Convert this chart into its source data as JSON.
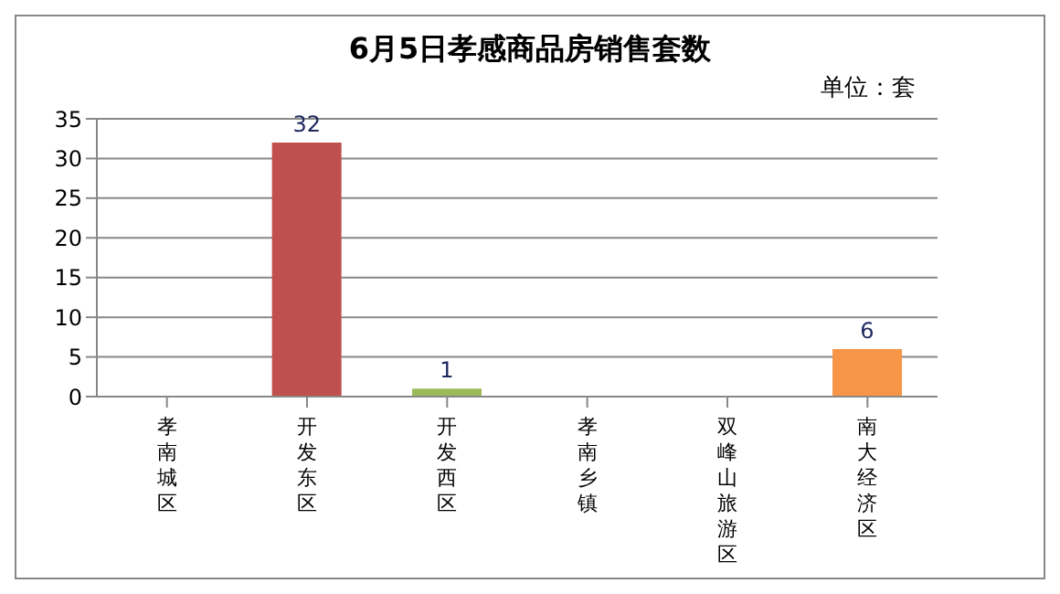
{
  "chart_data": {
    "type": "bar",
    "title": "6月5日孝感商品房销售套数",
    "annotations": [
      "单位：套"
    ],
    "categories": [
      "孝南城区",
      "开发东区",
      "开发西区",
      "孝南乡镇",
      "双峰山旅游区",
      "南大经济区"
    ],
    "values": [
      0,
      32,
      1,
      0,
      0,
      6
    ],
    "colors": [
      "#4f81bd",
      "#c0504d",
      "#9bbb59",
      "#8064a2",
      "#4bacc6",
      "#f79646"
    ],
    "value_labels": [
      null,
      "32",
      "1",
      null,
      null,
      "6"
    ],
    "ylim": [
      0,
      35
    ],
    "yticks": [
      0,
      5,
      10,
      15,
      20,
      25,
      30,
      35
    ],
    "grid": "y"
  }
}
